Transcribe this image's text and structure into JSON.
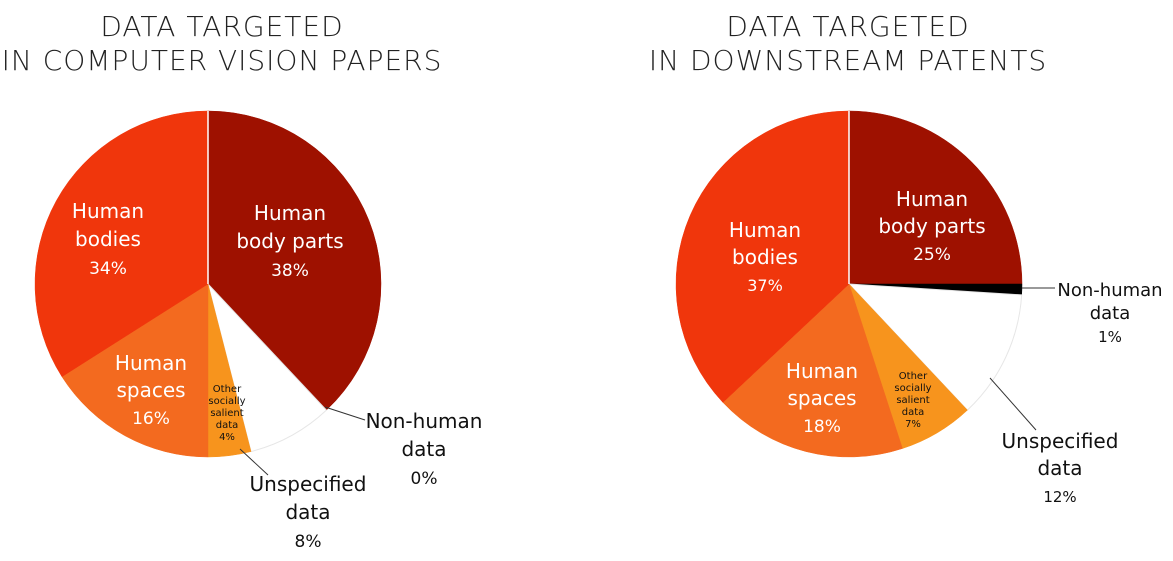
{
  "chart_data": [
    {
      "type": "pie",
      "title": [
        "DATA TARGETED",
        "IN COMPUTER VISION PAPERS"
      ],
      "slices": [
        {
          "label": [
            "Human",
            "body parts"
          ],
          "pct_label": "38%",
          "value": 38,
          "color": "#9e1100"
        },
        {
          "label": [
            "Non-human",
            "data"
          ],
          "pct_label": "0%",
          "value": 0,
          "color": "#000000"
        },
        {
          "label": [
            "Unspecified",
            "data"
          ],
          "pct_label": "8%",
          "value": 8,
          "color": "#ffffff"
        },
        {
          "label": [
            "Other",
            "socially",
            "salient",
            "data"
          ],
          "pct_label": "4%",
          "value": 4,
          "color": "#f7941d"
        },
        {
          "label": [
            "Human",
            "spaces"
          ],
          "pct_label": "16%",
          "value": 16,
          "color": "#f36a1f"
        },
        {
          "label": [
            "Human",
            "bodies"
          ],
          "pct_label": "34%",
          "value": 34,
          "color": "#f0360c"
        }
      ]
    },
    {
      "type": "pie",
      "title": [
        "DATA TARGETED",
        "IN DOWNSTREAM PATENTS"
      ],
      "slices": [
        {
          "label": [
            "Human",
            "body parts"
          ],
          "pct_label": "25%",
          "value": 25,
          "color": "#9e1100"
        },
        {
          "label": [
            "Non-human",
            "data"
          ],
          "pct_label": "1%",
          "value": 1,
          "color": "#000000"
        },
        {
          "label": [
            "Unspecified",
            "data"
          ],
          "pct_label": "12%",
          "value": 12,
          "color": "#ffffff"
        },
        {
          "label": [
            "Other",
            "socially",
            "salient",
            "data"
          ],
          "pct_label": "7%",
          "value": 7,
          "color": "#f7941d"
        },
        {
          "label": [
            "Human",
            "spaces"
          ],
          "pct_label": "18%",
          "value": 18,
          "color": "#f36a1f"
        },
        {
          "label": [
            "Human",
            "bodies"
          ],
          "pct_label": "37%",
          "value": 37,
          "color": "#f0360c"
        }
      ]
    }
  ]
}
